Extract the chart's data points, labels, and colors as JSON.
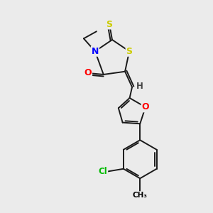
{
  "background_color": "#ebebeb",
  "atom_colors": {
    "S": "#cccc00",
    "N": "#0000ff",
    "O": "#ff0000",
    "Cl": "#00bb00",
    "C": "#000000",
    "H": "#444444"
  },
  "bond_color": "#1a1a1a",
  "bond_lw": 1.4,
  "figsize": [
    3.0,
    3.0
  ],
  "dpi": 100
}
